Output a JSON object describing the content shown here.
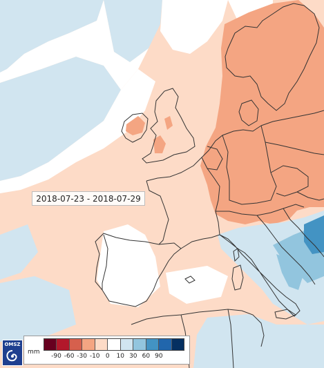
{
  "date_range": "2018-07-23 - 2018-07-29",
  "logo_text": "OMSZ",
  "legend": {
    "unit": "mm",
    "colors": [
      "#67001f",
      "#b2182b",
      "#d6604d",
      "#f4a582",
      "#fddbc7",
      "#ffffff",
      "#d1e5f0",
      "#92c5de",
      "#4393c3",
      "#2166ac",
      "#053061"
    ],
    "ticks": [
      "-90",
      "-60",
      "-30",
      "-10",
      "0",
      "10",
      "30",
      "60",
      "90"
    ]
  },
  "map_colors": {
    "pale_orange": "#fddbc7",
    "salmon": "#f4a582",
    "light_blue": "#d1e5f0",
    "mid_blue": "#92c5de",
    "blue": "#4393c3",
    "border": "#333333"
  }
}
